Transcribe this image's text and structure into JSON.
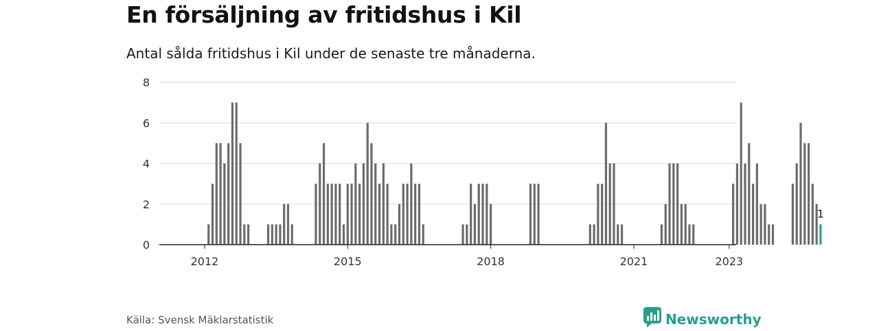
{
  "header": {
    "title": "En försäljning av fritidshus i Kil",
    "subtitle": "Antal sålda fritidshus i Kil under de senaste tre månaderna."
  },
  "footer": {
    "source": "Källa: Svensk Mäklarstatistik",
    "brand": "Newsworthy",
    "brand_icon": "newsworthy-logo-icon"
  },
  "colors": {
    "bar": "#6b6b6d",
    "highlight": "#2a9d8f",
    "grid": "#d9d9d9",
    "axis": "#222222"
  },
  "chart_data": {
    "type": "bar",
    "title": "En försäljning av fritidshus i Kil",
    "subtitle": "Antal sålda fritidshus i Kil under de senaste tre månaderna.",
    "xlabel": "",
    "ylabel": "",
    "ylim": [
      0,
      8
    ],
    "yticks": [
      0,
      2,
      4,
      6,
      8
    ],
    "xticks": [
      "2012",
      "2015",
      "2018",
      "2021",
      "2023"
    ],
    "start": "2011-01",
    "grid": true,
    "legend": "none",
    "highlight_label": "1",
    "values": [
      0,
      0,
      0,
      0,
      0,
      0,
      0,
      0,
      0,
      0,
      0,
      0,
      0,
      1,
      3,
      5,
      5,
      4,
      5,
      7,
      7,
      5,
      1,
      1,
      0,
      0,
      0,
      0,
      1,
      1,
      1,
      1,
      2,
      2,
      1,
      0,
      0,
      0,
      0,
      0,
      3,
      4,
      5,
      3,
      3,
      3,
      3,
      1,
      3,
      3,
      4,
      3,
      4,
      6,
      5,
      4,
      3,
      4,
      3,
      1,
      1,
      2,
      3,
      3,
      4,
      3,
      3,
      1,
      0,
      0,
      0,
      0,
      0,
      0,
      0,
      0,
      0,
      1,
      1,
      3,
      2,
      3,
      3,
      3,
      2,
      0,
      0,
      0,
      0,
      0,
      0,
      0,
      0,
      0,
      3,
      3,
      3,
      0,
      0,
      0,
      0,
      0,
      0,
      0,
      0,
      0,
      0,
      0,
      0,
      1,
      1,
      3,
      3,
      6,
      4,
      4,
      1,
      1,
      0,
      0,
      0,
      0,
      0,
      0,
      0,
      0,
      0,
      1,
      2,
      4,
      4,
      4,
      2,
      2,
      1,
      1,
      0,
      0,
      0,
      0,
      0,
      0,
      0,
      0,
      0,
      3,
      4,
      7,
      4,
      5,
      3,
      4,
      2,
      2,
      1,
      1,
      0,
      0,
      0,
      0,
      3,
      4,
      6,
      5,
      5,
      3,
      2,
      1
    ]
  }
}
